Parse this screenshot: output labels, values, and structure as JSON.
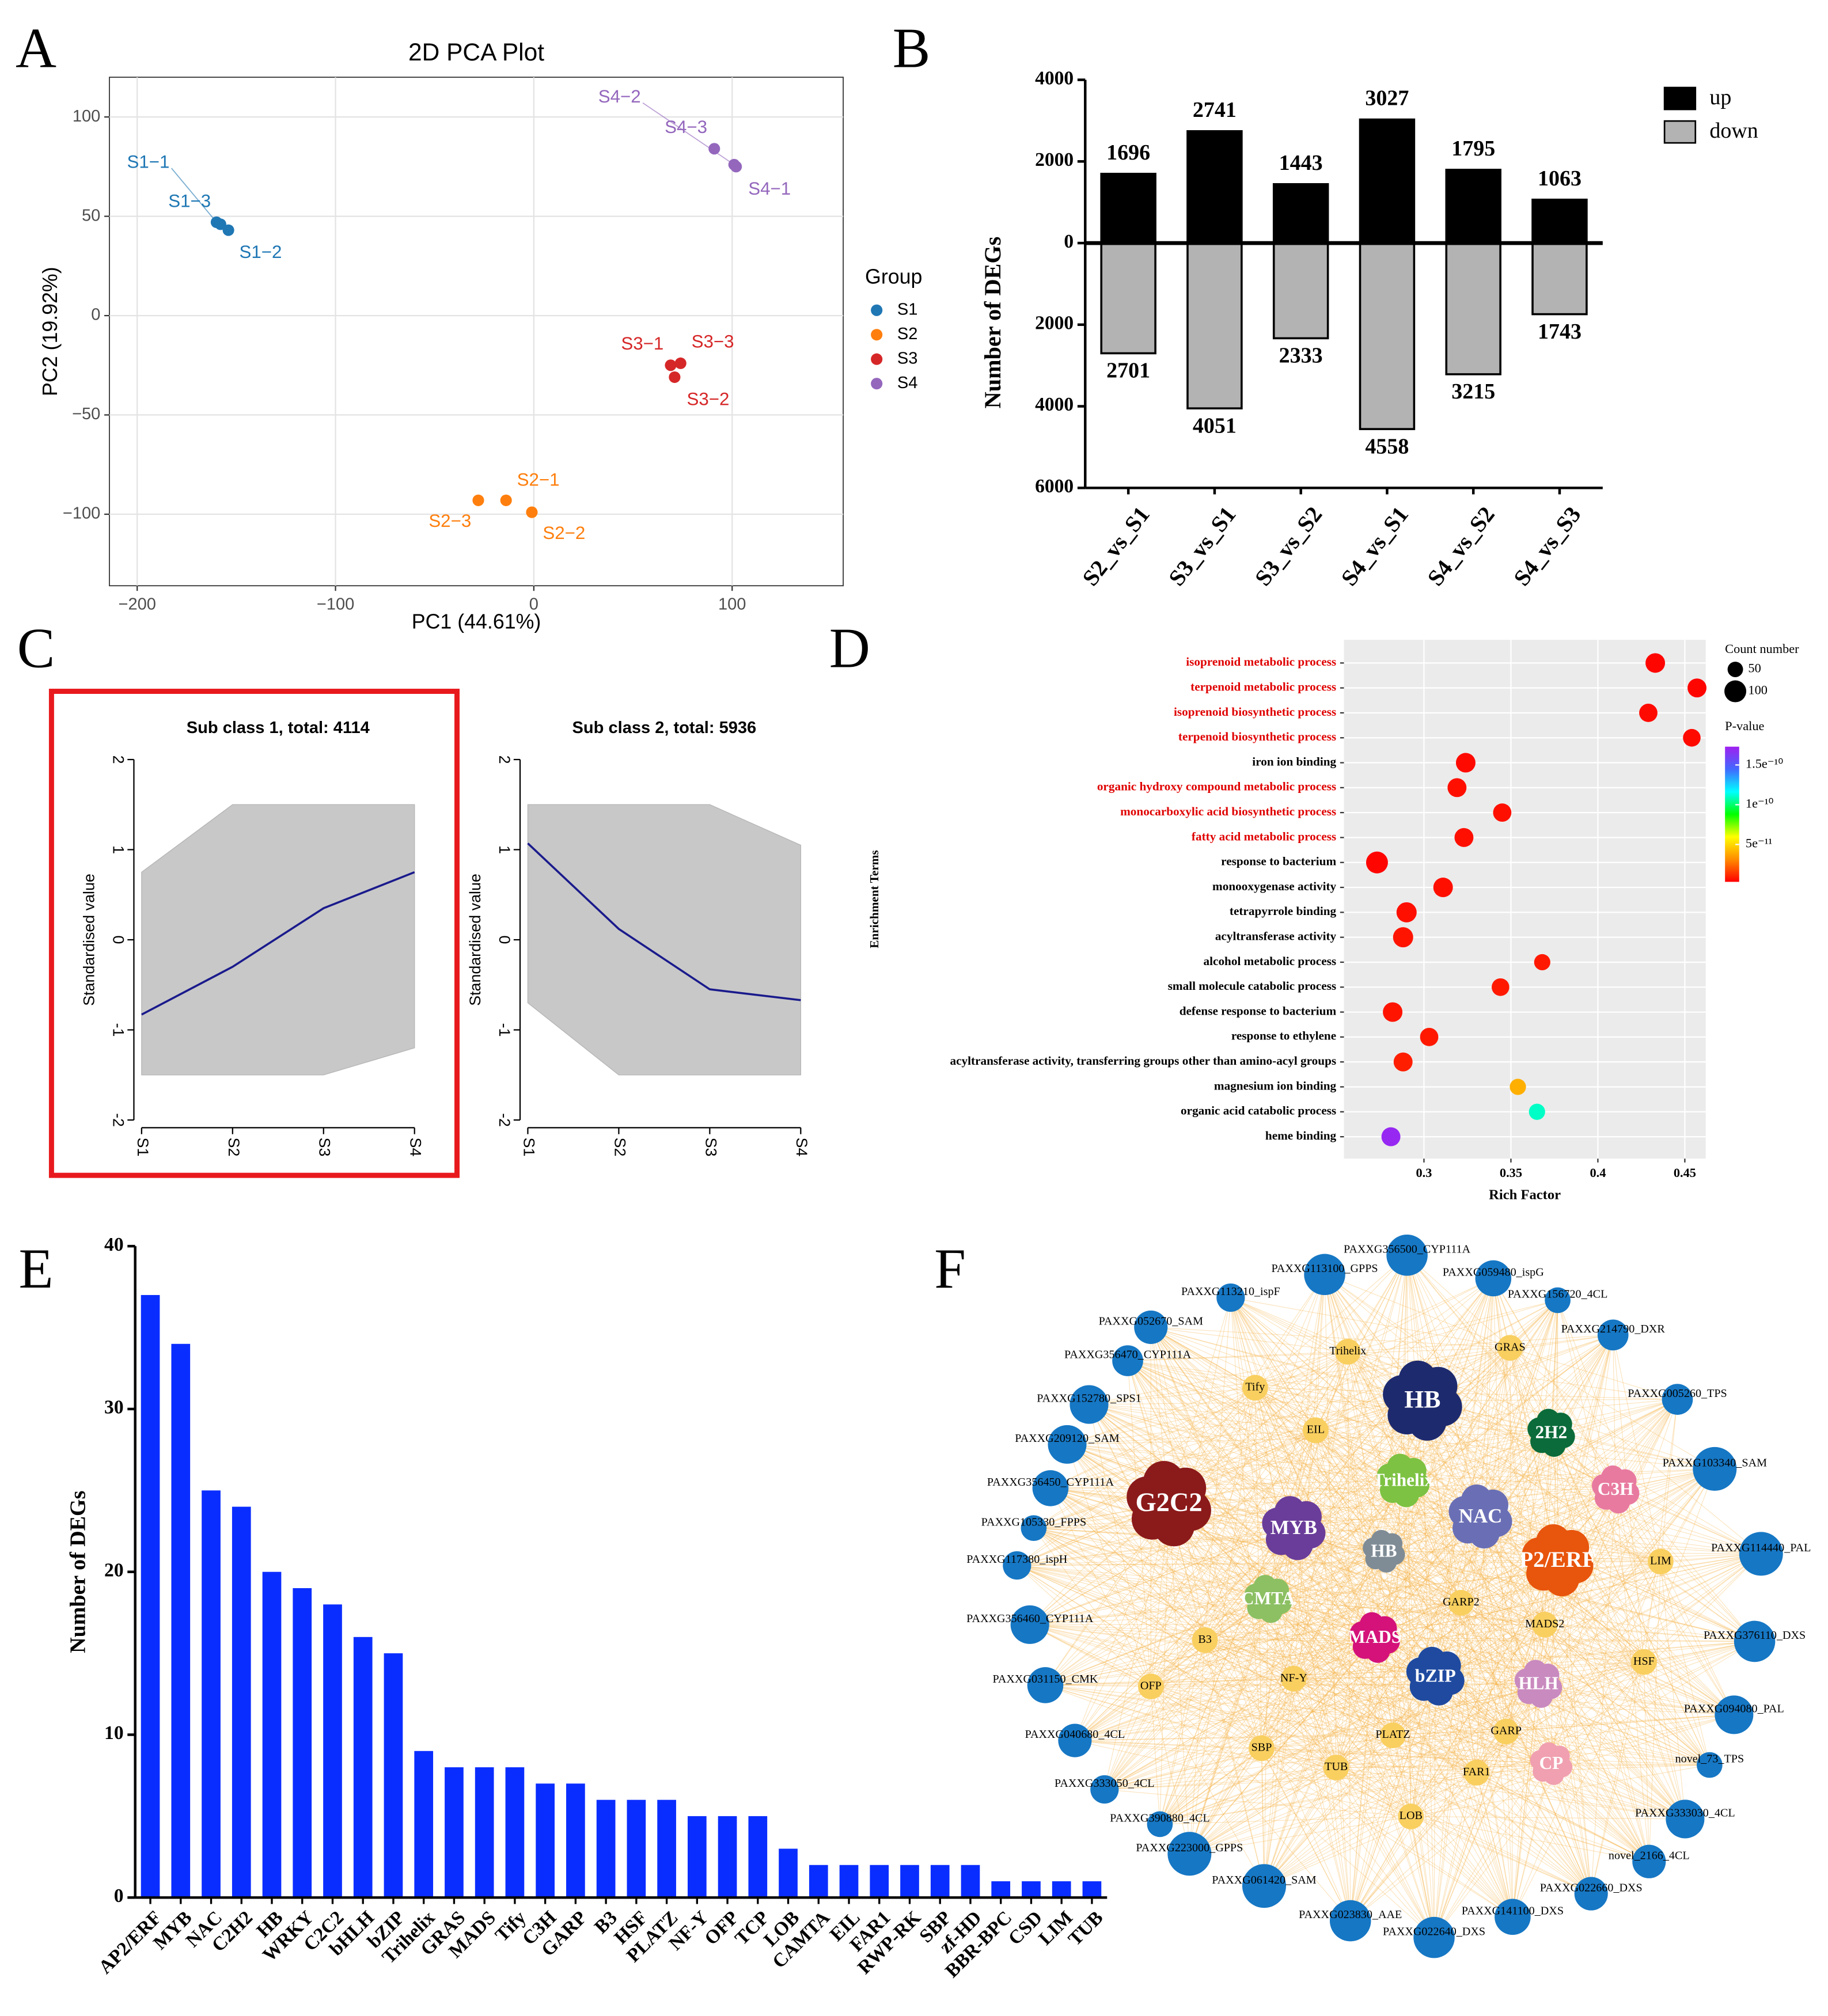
{
  "panel_labels": [
    "A",
    "B",
    "C",
    "D",
    "E",
    "F"
  ],
  "chart_data": [
    {
      "type": "scatter",
      "title": "2D PCA Plot",
      "x_label": "PC1 (44.61%)",
      "y_label": "PC2 (19.92%)",
      "legend_title": "Group",
      "xlim": [
        -214,
        156
      ],
      "ylim": [
        -136,
        120
      ],
      "xticks": [
        {
          "value": -200,
          "label": "−200"
        },
        {
          "value": -100,
          "label": "−100"
        },
        0,
        100
      ],
      "yticks": [
        {
          "value": -100,
          "label": "−100"
        },
        {
          "value": -50,
          "label": "−50"
        },
        0,
        50,
        100
      ],
      "grid": true,
      "series": [
        {
          "name": "S1",
          "color": "#1f77b4",
          "x": [
            -160,
            -158,
            -154
          ],
          "values": [
            47,
            46,
            43
          ],
          "labels": [
            "S1−1",
            "S1−3",
            "S1−2"
          ]
        },
        {
          "name": "S2",
          "color": "#ff7f0e",
          "x": [
            -28,
            -14,
            -1
          ],
          "values": [
            -93,
            -93,
            -99
          ],
          "labels": [
            "S2−3",
            "S2−1",
            "S2−2"
          ]
        },
        {
          "name": "S3",
          "color": "#d62728",
          "x": [
            69,
            74,
            71
          ],
          "values": [
            -25,
            -24,
            -31
          ],
          "labels": [
            "S3−1",
            "S3−3",
            "S3−2"
          ]
        },
        {
          "name": "S4",
          "color": "#9467bd",
          "x": [
            101,
            91,
            102
          ],
          "values": [
            76,
            84,
            75
          ],
          "labels": [
            "S4−2",
            "S4−3",
            "S4−1"
          ]
        }
      ]
    },
    {
      "type": "bar",
      "y_label": "Number of DEGs",
      "categories": [
        "S2_vs_S1",
        "S3_vs_S1",
        "S3_vs_S2",
        "S4_vs_S1",
        "S4_vs_S2",
        "S4_vs_S3"
      ],
      "ylim": [
        -6000,
        4000
      ],
      "yticks": [
        {
          "value": -6000,
          "label": "6000"
        },
        {
          "value": -4000,
          "label": "4000"
        },
        {
          "value": -2000,
          "label": "2000"
        },
        0,
        2000,
        4000
      ],
      "legend": "top-right",
      "series": [
        {
          "name": "up",
          "color": "#000000",
          "values": [
            1696,
            2741,
            1443,
            3027,
            1795,
            1063
          ]
        },
        {
          "name": "down",
          "color": "#b3b3b3",
          "values": [
            -2701,
            -4051,
            -2333,
            -4558,
            -3215,
            -1743
          ],
          "value_labels": [
            "2701",
            "4051",
            "2333",
            "4558",
            "3215",
            "1743"
          ]
        }
      ]
    },
    {
      "type": "line",
      "title": "Sub class 1, total: 4114",
      "y_label": "Standardised value",
      "categories": [
        "S1",
        "S2",
        "S3",
        "S4"
      ],
      "ylim": [
        -2,
        2
      ],
      "yticks": [
        -2,
        -1,
        0,
        1,
        2
      ],
      "band": {
        "color": "#c8c8c8",
        "upper": [
          0.75,
          1.5,
          1.5,
          1.5
        ],
        "lower": [
          -1.5,
          -1.5,
          -1.5,
          -1.2
        ]
      },
      "series": [
        {
          "color": "#1a1a8c",
          "values": [
            -0.83,
            -0.3,
            0.35,
            0.75
          ]
        }
      ]
    },
    {
      "type": "line",
      "title": "Sub class 2, total: 5936",
      "y_label": "Standardised value",
      "categories": [
        "S1",
        "S2",
        "S3",
        "S4"
      ],
      "ylim": [
        -2,
        2
      ],
      "yticks": [
        -2,
        -1,
        0,
        1,
        2
      ],
      "band": {
        "color": "#c8c8c8",
        "upper": [
          1.5,
          1.5,
          1.5,
          1.05
        ],
        "lower": [
          -0.7,
          -1.5,
          -1.5,
          -1.5
        ]
      },
      "series": [
        {
          "color": "#1a1a8c",
          "values": [
            1.07,
            0.12,
            -0.55,
            -0.67
          ]
        }
      ]
    },
    {
      "type": "dot",
      "x_label": "Rich Factor",
      "y_label": "Enrichment Terms",
      "categories": [
        "isoprenoid metabolic process",
        "terpenoid metabolic process",
        "isoprenoid biosynthetic process",
        "terpenoid biosynthetic process",
        "iron ion binding",
        "organic hydroxy compound metabolic process",
        "monocarboxylic acid biosynthetic process",
        "fatty acid metabolic process",
        "response to bacterium",
        "monooxygenase activity",
        "tetrapyrrole binding",
        "acyltransferase activity",
        "alcohol metabolic process",
        "small molecule catabolic process",
        "defense response to bacterium",
        "response to ethylene",
        "acyltransferase activity, transferring groups other than amino-acyl groups",
        "magnesium ion binding",
        "organic acid catabolic process",
        "heme binding"
      ],
      "values": [
        0.433,
        0.457,
        0.429,
        0.454,
        0.324,
        0.319,
        0.345,
        0.323,
        0.273,
        0.311,
        0.29,
        0.288,
        0.368,
        0.344,
        0.282,
        0.303,
        0.288,
        0.354,
        0.365,
        0.281
      ],
      "sizes": [
        80,
        75,
        70,
        65,
        80,
        75,
        70,
        75,
        100,
        80,
        85,
        85,
        55,
        65,
        80,
        70,
        75,
        55,
        55,
        75
      ],
      "pvalues": [
        4e-12,
        4e-12,
        5e-12,
        5e-12,
        5e-12,
        6e-12,
        6e-12,
        6e-12,
        4e-12,
        6e-12,
        6e-12,
        7e-12,
        8e-12,
        8e-12,
        7e-12,
        8e-12,
        9e-12,
        4e-11,
        1.1e-10,
        1.7e-10
      ],
      "label_colors": [
        "#e00000",
        "#e00000",
        "#e00000",
        "#e00000",
        "#000000",
        "#e00000",
        "#e00000",
        "#e00000",
        "#000000",
        "#000000",
        "#000000",
        "#000000",
        "#000000",
        "#000000",
        "#000000",
        "#000000",
        "#000000",
        "#000000",
        "#000000",
        "#000000"
      ],
      "xlim": [
        0.254,
        0.462
      ],
      "xticks": [
        0.3,
        0.35,
        0.4,
        0.45
      ],
      "grid": true,
      "size_legend": {
        "title": "Count number",
        "values": [
          50,
          100
        ]
      },
      "color_scale": {
        "title": "P-value",
        "lim": [
          3e-12,
          1.73e-10
        ],
        "ticks": [
          {
            "value": 5e-11,
            "label": "5e⁻¹¹"
          },
          {
            "value": 1e-10,
            "label": "1e⁻¹⁰"
          },
          {
            "value": 1.5e-10,
            "label": "1.5e⁻¹⁰"
          }
        ],
        "colors": [
          "#ff0000",
          "#ff8c00",
          "#ffff00",
          "#00ff00",
          "#00ffff",
          "#4169ff",
          "#a020f0"
        ]
      }
    },
    {
      "type": "bar",
      "y_label": "Number of DEGs",
      "categories": [
        "AP2/ERF",
        "MYB",
        "NAC",
        "C2H2",
        "HB",
        "WRKY",
        "C2C2",
        "bHLH",
        "bZIP",
        "Trihelix",
        "GRAS",
        "MADS",
        "Tify",
        "C3H",
        "GARP",
        "B3",
        "HSF",
        "PLATZ",
        "NF-Y",
        "OFP",
        "TCP",
        "LOB",
        "CAMTA",
        "EIL",
        "FAR1",
        "RWP-RK",
        "SBP",
        "zf-HD",
        "BBR-BPC",
        "CSD",
        "LIM",
        "TUB"
      ],
      "values": [
        37,
        34,
        25,
        24,
        20,
        19,
        18,
        16,
        15,
        9,
        8,
        8,
        8,
        7,
        7,
        6,
        6,
        6,
        5,
        5,
        5,
        3,
        2,
        2,
        2,
        2,
        2,
        2,
        1,
        1,
        1,
        1
      ],
      "color": "#0a2dff",
      "ylim": [
        0,
        40
      ],
      "yticks": [
        0,
        10,
        20,
        30,
        40
      ]
    },
    {
      "type": "network",
      "gene_color": "#1677c4",
      "tf_color": "#f9cf5f",
      "edge_color": "#f5b041",
      "genes": [
        "PAXXG356500_CYP111A",
        "PAXXG059480_ispG",
        "PAXXG156720_4CL",
        "PAXXG214790_DXR",
        "PAXXG005260_TPS",
        "PAXXG103340_SAM",
        "PAXXG114440_PAL",
        "PAXXG376110_DXS",
        "PAXXG094080_PAL",
        "novel_73_TPS",
        "PAXXG333030_4CL",
        "novel_2166_4CL",
        "PAXXG022660_DXS",
        "PAXXG141100_DXS",
        "PAXXG022640_DXS",
        "PAXXG023830_AAE",
        "PAXXG061420_SAM",
        "PAXXG223000_GPPS",
        "PAXXG390880_4CL",
        "PAXXG333050_4CL",
        "PAXXG040680_4CL",
        "PAXXG031150_CMK",
        "PAXXG356460_CYP111A",
        "PAXXG117380_ispH",
        "PAXXG105330_FPPS",
        "PAXXG356450_CYP111A",
        "PAXXG209120_SAM",
        "PAXXG152780_SPS1",
        "PAXXG356470_CYP111A",
        "PAXXG052670_SAM",
        "PAXXG113210_ispF",
        "PAXXG113100_GPPS"
      ],
      "transcription_factors": [
        "Trihelix",
        "GRAS",
        "Tify",
        "EIL",
        "LIM",
        "B3",
        "OFP",
        "NF-Y",
        "GARP2",
        "MADS2",
        "HSF",
        "SBP",
        "PLATZ",
        "GARP",
        "TUB",
        "FAR1",
        "LOB"
      ],
      "hubs": [
        {
          "label": "HB",
          "color": "#1e2a6e"
        },
        {
          "label": "2H2",
          "color": "#0b6b3a"
        },
        {
          "label": "Trihelix",
          "color": "#7dc242"
        },
        {
          "label": "G2C2",
          "color": "#8b1a1a"
        },
        {
          "label": "MYB",
          "color": "#6a3d9a"
        },
        {
          "label": "NAC",
          "color": "#6a6fb5"
        },
        {
          "label": "C3H",
          "color": "#e87aa0"
        },
        {
          "label": "HB",
          "color": "#7f8c96"
        },
        {
          "label": "P2/ERF",
          "color": "#e8550c"
        },
        {
          "label": "CMTA",
          "color": "#8cc063"
        },
        {
          "label": "MADS",
          "color": "#d4127a"
        },
        {
          "label": "bZIP",
          "color": "#1f4aa0"
        },
        {
          "label": "HLH",
          "color": "#c98abf"
        },
        {
          "label": "CP",
          "color": "#f0a0b0"
        }
      ]
    }
  ]
}
